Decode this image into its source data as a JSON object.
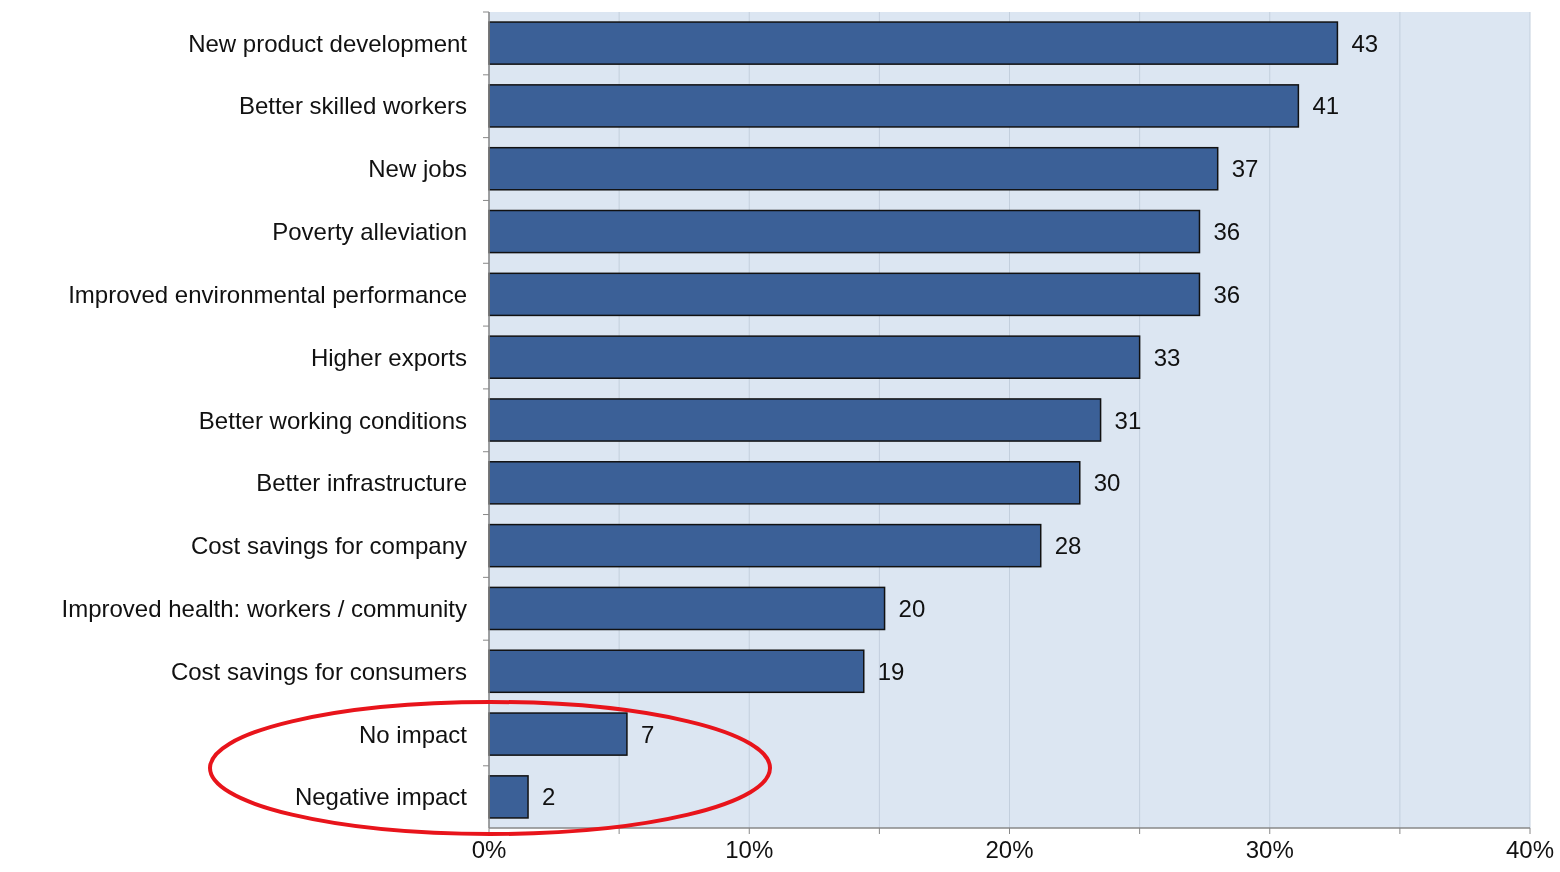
{
  "chart_data": {
    "type": "bar",
    "orientation": "horizontal",
    "categories": [
      "New product development",
      "Better skilled workers",
      "New jobs",
      "Poverty alleviation",
      "Improved environmental performance",
      "Higher exports",
      "Better working conditions",
      "Better infrastructure",
      "Cost savings for company",
      "Improved health: workers / community",
      "Cost savings for consumers",
      "No impact",
      "Negative impact"
    ],
    "values": [
      32.6,
      31.1,
      28.0,
      27.3,
      27.3,
      25.0,
      23.5,
      22.7,
      21.2,
      15.2,
      14.4,
      5.3,
      1.5
    ],
    "annotations": [
      {
        "text": "43",
        "x": 32.6,
        "y": "New product development"
      },
      {
        "text": "41",
        "x": 31.1,
        "y": "Better skilled workers"
      },
      {
        "text": "37",
        "x": 28.0,
        "y": "New jobs"
      },
      {
        "text": "36",
        "x": 27.3,
        "y": "Poverty alleviation"
      },
      {
        "text": "36",
        "x": 27.3,
        "y": "Improved environmental performance"
      },
      {
        "text": "33",
        "x": 25.0,
        "y": "Higher exports"
      },
      {
        "text": "31",
        "x": 23.5,
        "y": "Better working conditions"
      },
      {
        "text": "30",
        "x": 22.7,
        "y": "Better infrastructure"
      },
      {
        "text": "28",
        "x": 21.2,
        "y": "Cost savings for company"
      },
      {
        "text": "20",
        "x": 15.2,
        "y": "Improved health: workers / community"
      },
      {
        "text": "19",
        "x": 14.4,
        "y": "Cost savings for consumers"
      },
      {
        "text": "7",
        "x": 5.3,
        "y": "No impact"
      },
      {
        "text": "2",
        "x": 1.5,
        "y": "Negative impact"
      }
    ],
    "color": "#3b6097",
    "xlim": [
      0,
      40
    ],
    "xticks": [
      {
        "value": 0,
        "label": "0%"
      },
      {
        "value": 5,
        "label": null
      },
      {
        "value": 10,
        "label": "10%"
      },
      {
        "value": 15,
        "label": null
      },
      {
        "value": 20,
        "label": "20%"
      },
      {
        "value": 25,
        "label": null
      },
      {
        "value": 30,
        "label": "30%"
      },
      {
        "value": 35,
        "label": null
      },
      {
        "value": 40,
        "label": "40%"
      }
    ],
    "grid": "x"
  }
}
